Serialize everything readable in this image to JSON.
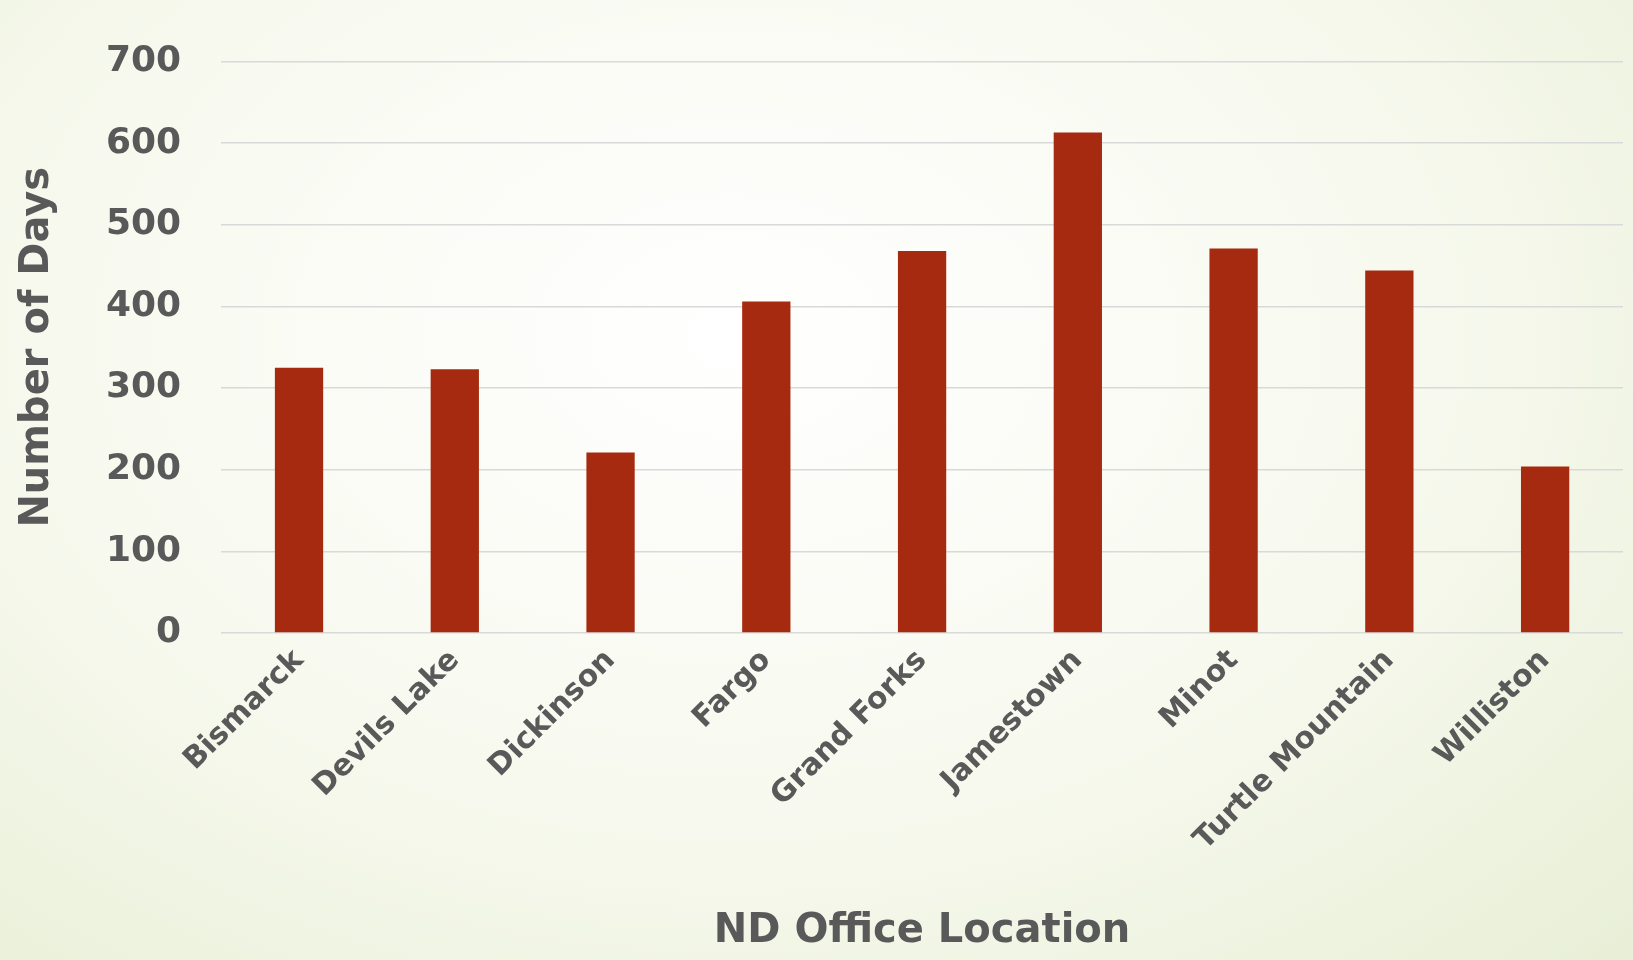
{
  "chart_data": {
    "type": "bar",
    "xlabel": "ND Office Location",
    "ylabel": "Number of Days",
    "categories": [
      "Bismarck",
      "Devils Lake",
      "Dickinson",
      "Fargo",
      "Grand Forks",
      "Jamestown",
      "Minot",
      "Turtle Mountain",
      "Williston"
    ],
    "values": [
      325,
      323,
      221,
      406,
      468,
      613,
      471,
      444,
      204
    ],
    "color": "#a52a10",
    "ylim": [
      0,
      700
    ],
    "yticks": [
      0,
      100,
      200,
      300,
      400,
      500,
      600,
      700
    ],
    "grid": "y",
    "legend": false
  }
}
